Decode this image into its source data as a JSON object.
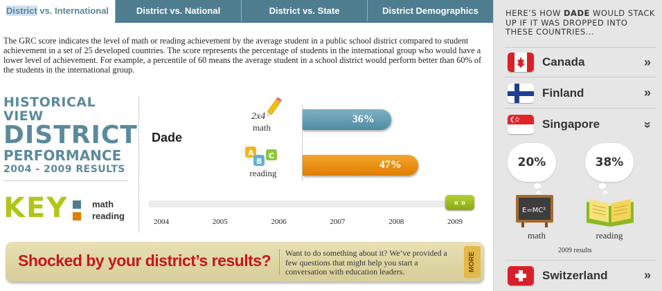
{
  "tabs": [
    {
      "pre": "District",
      "rest": " vs. International"
    },
    {
      "pre": "",
      "rest": "District vs. National"
    },
    {
      "pre": "",
      "rest": "District vs. State"
    },
    {
      "pre": "",
      "rest": "District Demographics"
    }
  ],
  "intro": "The GRC score indicates the level of math or reading achievement by the average student in a public school district compared to student achievement in a set of 25 developed countries. The score represents the percentage of students in the international group who would have a lower level of achievement. For example, a percentile of 60 means the average student in a school district would perform better than 60% of the students in the international group.",
  "historical": {
    "line1": "HISTORICAL VIEW",
    "line2": "DISTRICT",
    "line3": "PERFORMANCE",
    "line4": "2004 - 2009 RESULTS"
  },
  "key": {
    "title": "KEY",
    "items": [
      {
        "label": "math",
        "color": "#4f7d90"
      },
      {
        "label": "reading",
        "color": "#e07f00"
      }
    ]
  },
  "chart": {
    "district": "Dade",
    "math_icon_text": "2x4",
    "math_label": "math",
    "reading_label": "reading",
    "math_value": "36%",
    "reading_value": "47%",
    "years": [
      "2004",
      "2005",
      "2006",
      "2007",
      "2008",
      "2009"
    ],
    "nav_label": "« »"
  },
  "chart_data": {
    "type": "bar",
    "categories": [
      "math",
      "reading"
    ],
    "values": [
      36,
      47
    ],
    "title": "",
    "xlabel": "",
    "ylabel": "",
    "colors": [
      "#4f7d90",
      "#e07f00"
    ]
  },
  "banner": {
    "headline": "Shocked by your district’s results?",
    "copy": "Want to do something about it? We’ve provided a few questions that might help you start a conversation with education leaders.",
    "more": "MORE"
  },
  "panel": {
    "intro_a": "HERE’S HOW ",
    "intro_b": "DADE",
    "intro_c": " WOULD STACK UP IF IT WAS DROPPED INTO THESE COUNTRIES...",
    "countries": [
      {
        "name": "Canada",
        "chev": "»"
      },
      {
        "name": "Finland",
        "chev": "»"
      },
      {
        "name": "Singapore",
        "chev": "»"
      },
      {
        "name": "Switzerland",
        "chev": "»"
      }
    ],
    "math_pct": "20%",
    "reading_pct": "38%",
    "blackboard_text": "E=MC²",
    "math_label": "math",
    "reading_label": "reading",
    "results_label": "2009 results"
  }
}
